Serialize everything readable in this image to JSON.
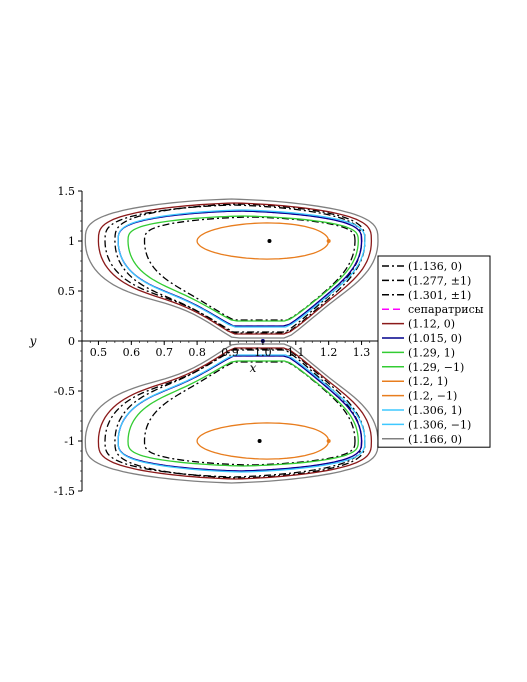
{
  "chart_data": {
    "type": "line",
    "title": "",
    "xlabel": "x",
    "ylabel": "y",
    "xlim": [
      0.45,
      1.35
    ],
    "ylim": [
      -1.5,
      1.5
    ],
    "x_ticks": [
      "0.5",
      "0.6",
      "0.7",
      "0.8",
      "0.9",
      "1.0",
      "1.1",
      "1.2",
      "1.3"
    ],
    "y_ticks": [
      "1.5",
      "1",
      "0.5",
      "0",
      "-0.5",
      "-1",
      "-1.5"
    ],
    "grid": false,
    "legend_position": "right",
    "series": [
      {
        "name": "(1.136, 0)",
        "color": "#000000",
        "style": "dashdot",
        "x_range": [
          0.55,
          1.31
        ],
        "y_peak": 1.37
      },
      {
        "name": "(1.277, ±1)",
        "color": "#000000",
        "style": "dashdot",
        "x_range": [
          0.64,
          1.28
        ],
        "y_peak": 1.24
      },
      {
        "name": "(1.301, ±1)",
        "color": "#000000",
        "style": "dashdot",
        "x_range": [
          0.52,
          1.3
        ],
        "y_peak": 1.36
      },
      {
        "name": "сепаратрисы",
        "color": "#ff00ff",
        "style": "dash",
        "x_range": [
          0.56,
          1.3
        ],
        "y_peak": 1.3
      },
      {
        "name": "(1.12, 0)",
        "color": "#8b1a1a",
        "style": "solid",
        "x_range": [
          0.5,
          1.33
        ],
        "y_peak": 1.38
      },
      {
        "name": "(1.015, 0)",
        "color": "#00008b",
        "style": "solid",
        "x_range": [
          0.56,
          1.3
        ],
        "y_peak": 1.3
      },
      {
        "name": "(1.29, 1)",
        "color": "#33cc33",
        "style": "solid",
        "x_range": [
          0.59,
          1.29
        ],
        "y_peak": 1.25
      },
      {
        "name": "(1.29, −1)",
        "color": "#33cc33",
        "style": "solid",
        "x_range": [
          0.59,
          1.29
        ],
        "y_peak": 1.25
      },
      {
        "name": "(1.2, 1)",
        "color": "#e87d1e",
        "style": "solid",
        "x_range": [
          0.8,
          1.2
        ],
        "y_peak": 1.18
      },
      {
        "name": "(1.2,  −1)",
        "color": "#e87d1e",
        "style": "solid",
        "x_range": [
          0.8,
          1.2
        ],
        "y_peak": 1.18
      },
      {
        "name": "(1.306, 1)",
        "color": "#3ec8ff",
        "style": "solid",
        "x_range": [
          0.56,
          1.31
        ],
        "y_peak": 1.31
      },
      {
        "name": "(1.306, −1)",
        "color": "#3ec8ff",
        "style": "solid",
        "x_range": [
          0.56,
          1.31
        ],
        "y_peak": 1.31
      },
      {
        "name": "(1.166, 0)",
        "color": "#808080",
        "style": "solid",
        "x_range": [
          0.46,
          1.35
        ],
        "y_peak": 1.42
      }
    ],
    "points": [
      {
        "x": 1.02,
        "y": 1.0,
        "color": "#000000"
      },
      {
        "x": 0.99,
        "y": -1.0,
        "color": "#000000"
      },
      {
        "x": 1.0,
        "y": 0.0,
        "color": "#00008b"
      },
      {
        "x": 1.2,
        "y": 1.0,
        "color": "#e87d1e"
      },
      {
        "x": 1.2,
        "y": -1.0,
        "color": "#e87d1e"
      }
    ]
  }
}
